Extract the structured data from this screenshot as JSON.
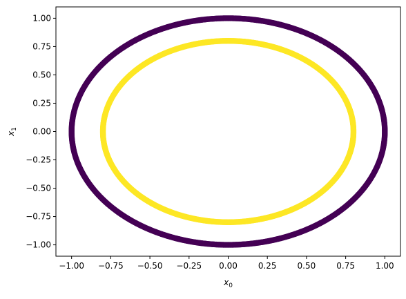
{
  "chart_data": {
    "type": "scatter",
    "title": "",
    "xlabel": "x",
    "xlabel_sub": "0",
    "ylabel": "x",
    "ylabel_sub": "1",
    "xlim": [
      -1.1,
      1.1
    ],
    "ylim": [
      -1.1,
      1.1
    ],
    "xticks": [
      -1.0,
      -0.75,
      -0.5,
      -0.25,
      0.0,
      0.25,
      0.5,
      0.75,
      1.0
    ],
    "yticks": [
      -1.0,
      -0.75,
      -0.5,
      -0.25,
      0.0,
      0.25,
      0.5,
      0.75,
      1.0
    ],
    "xtick_labels": [
      "−1.00",
      "−0.75",
      "−0.50",
      "−0.25",
      "0.00",
      "0.25",
      "0.50",
      "0.75",
      "1.00"
    ],
    "ytick_labels": [
      "−1.00",
      "−0.75",
      "−0.50",
      "−0.25",
      "0.00",
      "0.25",
      "0.50",
      "0.75",
      "1.00"
    ],
    "grid": false,
    "legend": "none",
    "series": [
      {
        "radius": 1.0,
        "center": [
          0.0,
          0.0
        ],
        "n_points": 1000,
        "color": "#440154"
      },
      {
        "radius": 0.8,
        "center": [
          0.0,
          0.0
        ],
        "n_points": 1000,
        "color": "#fde725"
      }
    ]
  }
}
